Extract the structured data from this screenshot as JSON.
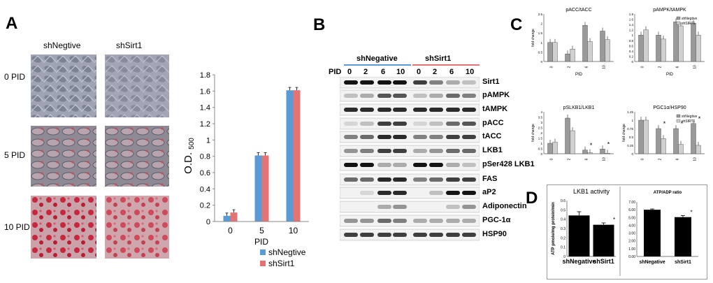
{
  "panels": {
    "A": "A",
    "B": "B",
    "C": "C",
    "D": "D"
  },
  "panelA": {
    "col_labels": [
      "shNegtive",
      "shSirt1"
    ],
    "row_labels": [
      "0 PID",
      "5 PID",
      "10 PID"
    ],
    "chart": {
      "ylabel_main": "O.D.",
      "ylabel_sub": "500",
      "xlabel": "PID",
      "yticks": [
        "0",
        "0.2",
        "0.4",
        "0.6",
        "0.8",
        "1",
        "1.2",
        "1.4",
        "1.6",
        "1.8"
      ],
      "categories": [
        "0",
        "5",
        "10"
      ],
      "legend": [
        "shNegtive",
        "shSirt1"
      ]
    }
  },
  "panelB": {
    "group_labels": [
      "shNegative",
      "shSirt1"
    ],
    "pid_label": "PID",
    "timepoints": [
      "0",
      "2",
      "6",
      "10",
      "0",
      "2",
      "6",
      "10"
    ],
    "bands": [
      "Sirt1",
      "pAMPK",
      "tAMPK",
      "pACC",
      "tACC",
      "LKB1",
      "pSer428 LKB1",
      "FAS",
      "aP2",
      "Adiponectin",
      "PGC-1α",
      "HSP90"
    ]
  },
  "panelC": {
    "charts": [
      {
        "title": "pACC/tACC",
        "ylabel": "fold change",
        "xlabel": "PID",
        "yticks": [
          "0",
          "0.5",
          "1",
          "1.5",
          "2",
          "2.5"
        ]
      },
      {
        "title": "pAMPK/tAMPK",
        "ylabel": "",
        "xlabel": "PID",
        "yticks": [
          "0",
          "0.2",
          "0.4",
          "0.6",
          "0.8",
          "1",
          "1.2",
          "1.4",
          "1.6",
          "1.8"
        ]
      },
      {
        "title": "pSLKB1/LKB1",
        "ylabel": "fold change",
        "xlabel": "PID",
        "yticks": [
          "0",
          "0.5",
          "1",
          "1.5",
          "2",
          "2.5",
          "3",
          "3.5",
          "4"
        ]
      },
      {
        "title": "PGC1α/HSP90",
        "ylabel": "fold change",
        "xlabel": "PID",
        "yticks": [
          "0",
          "0.25",
          "0.5",
          "0.75",
          "1",
          "1.25"
        ]
      }
    ],
    "legend": [
      "shNegtive",
      "shSIRT1"
    ],
    "xticks": [
      "0",
      "2",
      "6",
      "10"
    ],
    "asterisk": "*"
  },
  "panelD": {
    "left_title": "LKB1 activity",
    "left_ylabel": "ATP pmole/mg protein/min",
    "left_yticks": [
      "0",
      "0.1",
      "0.2",
      "0.3",
      "0.4",
      "0.5",
      "0.6"
    ],
    "right_title": "ATP/ADP ratio",
    "right_yticks": [
      "0.00",
      "1.00",
      "2.00",
      "3.00",
      "4.00",
      "5.00",
      "6.00",
      "7.00"
    ],
    "categories": [
      "shNegative",
      "shSirt1"
    ],
    "asterisk": "*"
  },
  "chart_data": [
    {
      "type": "bar",
      "panel": "A",
      "categories": [
        "0",
        "5",
        "10"
      ],
      "series": [
        {
          "name": "shNegtive",
          "values": [
            0.07,
            0.81,
            1.61
          ]
        },
        {
          "name": "shSirt1",
          "values": [
            0.11,
            0.81,
            1.61
          ]
        }
      ],
      "xlabel": "PID",
      "ylabel": "O.D. 500",
      "ylim": [
        0,
        1.8
      ],
      "legend": "bottom-right",
      "colors": {
        "shNegtive": "#5b9bd5",
        "shSirt1": "#e57373"
      }
    },
    {
      "type": "bar",
      "panel": "C",
      "title": "pACC/tACC",
      "categories": [
        "0",
        "2",
        "6",
        "10"
      ],
      "series": [
        {
          "name": "shNegtive",
          "values": [
            1.0,
            0.4,
            1.9,
            1.6
          ]
        },
        {
          "name": "shSIRT1",
          "values": [
            1.0,
            0.65,
            1.05,
            1.15
          ]
        }
      ],
      "ylim": [
        0,
        2.5
      ],
      "xlabel": "PID",
      "ylabel": "fold change"
    },
    {
      "type": "bar",
      "panel": "C",
      "title": "pAMPK/tAMPK",
      "categories": [
        "0",
        "2",
        "6",
        "10"
      ],
      "series": [
        {
          "name": "shNegtive",
          "values": [
            1.0,
            1.0,
            1.5,
            1.45
          ]
        },
        {
          "name": "shSIRT1",
          "values": [
            1.2,
            0.85,
            1.35,
            1.0
          ]
        }
      ],
      "ylim": [
        0,
        1.8
      ],
      "xlabel": "PID",
      "legend": "top-right"
    },
    {
      "type": "bar",
      "panel": "C",
      "title": "pSLKB1/LKB1",
      "categories": [
        "0",
        "2",
        "6",
        "10"
      ],
      "series": [
        {
          "name": "shNegtive",
          "values": [
            1.0,
            3.4,
            0.35,
            0.45
          ]
        },
        {
          "name": "shSIRT1",
          "values": [
            1.1,
            2.2,
            0.1,
            0.05
          ]
        }
      ],
      "ylim": [
        0,
        4
      ],
      "xlabel": "PID",
      "ylabel": "fold change"
    },
    {
      "type": "bar",
      "panel": "C",
      "title": "PGC1α/HSP90",
      "categories": [
        "0",
        "2",
        "6",
        "10"
      ],
      "series": [
        {
          "name": "shNegtive",
          "values": [
            1.0,
            0.75,
            0.75,
            0.9
          ]
        },
        {
          "name": "shSIRT1",
          "values": [
            1.0,
            0.45,
            0.28,
            0.25
          ]
        }
      ],
      "ylim": [
        0,
        1.25
      ],
      "xlabel": "PID",
      "ylabel": "fold change",
      "legend": "top-right"
    },
    {
      "type": "bar",
      "panel": "D",
      "title": "LKB1 activity",
      "categories": [
        "shNegative",
        "shSirt1"
      ],
      "values": [
        0.44,
        0.34
      ],
      "errors": [
        0.04,
        0.02
      ],
      "ylim": [
        0,
        0.6
      ],
      "ylabel": "ATP pmole/mg protein/min"
    },
    {
      "type": "bar",
      "panel": "D",
      "title": "ATP/ADP ratio",
      "categories": [
        "shNegative",
        "shSirt1"
      ],
      "values": [
        6.0,
        5.05
      ],
      "errors": [
        0.1,
        0.2
      ],
      "ylim": [
        0,
        7
      ]
    }
  ]
}
